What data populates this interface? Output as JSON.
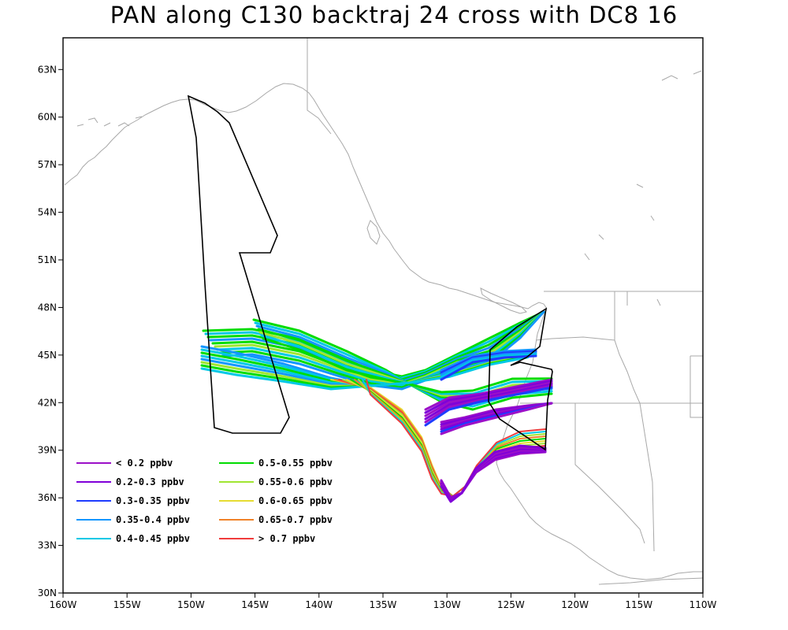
{
  "title": "PAN along C130 backtraj 24 cross with DC8 16",
  "map": {
    "lon_range": [
      -160,
      -110
    ],
    "lat_range": [
      30,
      65
    ],
    "x_ticks": [
      "160W",
      "155W",
      "150W",
      "145W",
      "140W",
      "135W",
      "130W",
      "125W",
      "120W",
      "115W",
      "110W"
    ],
    "y_ticks": [
      "30N",
      "33N",
      "36N",
      "39N",
      "42N",
      "45N",
      "48N",
      "51N",
      "54N",
      "57N",
      "60N",
      "63N"
    ],
    "coastline_color": "#a8a8a8",
    "flight_track_color": "#000000"
  },
  "legend": [
    {
      "label": "< 0.2 ppbv",
      "color": "#9c10c8"
    },
    {
      "label": "0.2-0.3 ppbv",
      "color": "#8000d8"
    },
    {
      "label": "0.3-0.35 ppbv",
      "color": "#1e3cff"
    },
    {
      "label": "0.35-0.4 ppbv",
      "color": "#1496ff"
    },
    {
      "label": "0.4-0.45 ppbv",
      "color": "#00c8e6"
    },
    {
      "label": "0.5-0.55 ppbv",
      "color": "#00dc00"
    },
    {
      "label": "0.55-0.6 ppbv",
      "color": "#a0e632"
    },
    {
      "label": "0.6-0.65 ppbv",
      "color": "#e6dc32"
    },
    {
      "label": "0.65-0.7 ppbv",
      "color": "#f08228"
    },
    {
      "label": "> 0.7 ppbv",
      "color": "#f03c3c"
    }
  ]
}
